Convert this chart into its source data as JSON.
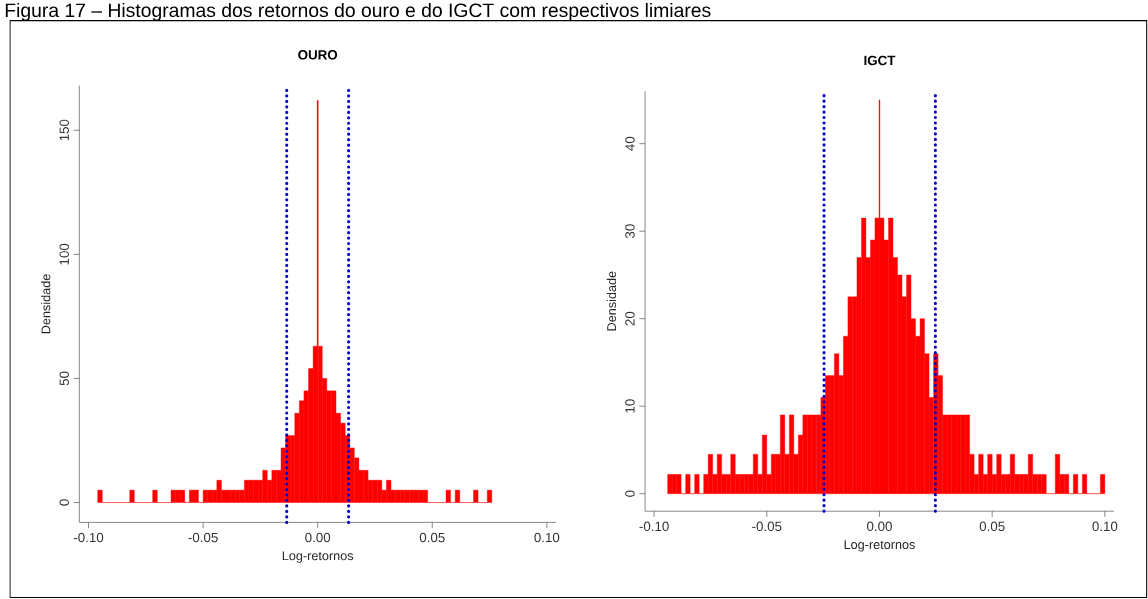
{
  "chart_data": [
    {
      "type": "histogram",
      "title": "OURO",
      "xlabel": "Log-retornos",
      "ylabel": "Densidade",
      "color": "#ff0000",
      "annotations": [
        "Figura 17 – Histogramas dos retornos do ouro e do IGCT com respectivos limiares"
      ],
      "xlim": [
        -0.104,
        0.104
      ],
      "ylim": [
        -8,
        168
      ],
      "xticks": [
        {
          "value": -0.1,
          "label": "-0.10"
        },
        {
          "value": -0.05,
          "label": "-0.05"
        },
        {
          "value": 0,
          "label": "0.00"
        },
        {
          "value": 0.05,
          "label": "0.05"
        },
        {
          "value": 0.1,
          "label": "0.10"
        }
      ],
      "yticks": [
        0,
        50,
        100,
        150
      ],
      "ref_lines": [
        {
          "axis": "x",
          "value": -0.0135,
          "color": "#0000cd",
          "line_style": "dotted"
        },
        {
          "axis": "x",
          "value": 0.0135,
          "color": "#0000cd",
          "line_style": "dotted"
        }
      ],
      "bins": [
        -0.096,
        -0.094,
        -0.092,
        -0.09,
        -0.088,
        -0.086,
        -0.084,
        -0.082,
        -0.08,
        -0.078,
        -0.076,
        -0.074,
        -0.072,
        -0.07,
        -0.068,
        -0.066,
        -0.064,
        -0.062,
        -0.06,
        -0.058,
        -0.056,
        -0.054,
        -0.052,
        -0.05,
        -0.048,
        -0.046,
        -0.044,
        -0.042,
        -0.04,
        -0.038,
        -0.036,
        -0.034,
        -0.032,
        -0.03,
        -0.028,
        -0.026,
        -0.024,
        -0.022,
        -0.02,
        -0.018,
        -0.016,
        -0.014,
        -0.012,
        -0.01,
        -0.008,
        -0.006,
        -0.004,
        -0.002,
        -0.00025,
        0.00025,
        0.002,
        0.004,
        0.006,
        0.008,
        0.01,
        0.012,
        0.014,
        0.016,
        0.018,
        0.02,
        0.022,
        0.024,
        0.026,
        0.028,
        0.03,
        0.032,
        0.034,
        0.036,
        0.038,
        0.04,
        0.042,
        0.044,
        0.046,
        0.048,
        0.05,
        0.052,
        0.054,
        0.056,
        0.058,
        0.06,
        0.062,
        0.064,
        0.066,
        0.068,
        0.07,
        0.072,
        0.074,
        0.076
      ],
      "values": [
        5,
        0,
        0,
        0,
        0,
        0,
        0,
        5,
        0,
        0,
        0,
        0,
        5,
        0,
        0,
        0,
        5,
        5,
        5,
        0,
        5,
        5,
        0,
        5,
        5,
        5,
        9,
        5,
        5,
        5,
        5,
        5,
        9,
        9,
        9,
        9,
        13,
        9,
        13,
        13,
        22,
        27,
        27,
        36,
        41,
        45,
        54,
        63,
        162,
        63,
        50,
        45,
        45,
        36,
        32,
        27,
        22,
        18,
        13,
        13,
        9,
        9,
        9,
        5,
        9,
        5,
        5,
        5,
        5,
        5,
        5,
        5,
        5,
        0,
        0,
        0,
        0,
        5,
        0,
        5,
        0,
        0,
        0,
        5,
        0,
        0,
        5
      ]
    },
    {
      "type": "histogram",
      "title": "IGCT",
      "xlabel": "Log-retornos",
      "ylabel": "Densidade",
      "color": "#ff0000",
      "xlim": [
        -0.104,
        0.104
      ],
      "ylim": [
        -2,
        46
      ],
      "xticks": [
        {
          "value": -0.1,
          "label": "-0.10"
        },
        {
          "value": -0.05,
          "label": "-0.05"
        },
        {
          "value": 0,
          "label": "0.00"
        },
        {
          "value": 0.05,
          "label": "0.05"
        },
        {
          "value": 0.1,
          "label": "0.10"
        }
      ],
      "yticks": [
        0,
        10,
        20,
        30,
        40
      ],
      "ref_lines": [
        {
          "axis": "x",
          "value": -0.0246,
          "color": "#0000cd",
          "line_style": "dotted"
        },
        {
          "axis": "x",
          "value": 0.0248,
          "color": "#0000cd",
          "line_style": "dotted"
        }
      ],
      "bins": [
        -0.094,
        -0.092,
        -0.09,
        -0.088,
        -0.086,
        -0.084,
        -0.082,
        -0.08,
        -0.078,
        -0.076,
        -0.074,
        -0.072,
        -0.07,
        -0.068,
        -0.066,
        -0.064,
        -0.062,
        -0.06,
        -0.058,
        -0.056,
        -0.054,
        -0.052,
        -0.05,
        -0.048,
        -0.046,
        -0.044,
        -0.042,
        -0.04,
        -0.038,
        -0.036,
        -0.034,
        -0.032,
        -0.03,
        -0.028,
        -0.026,
        -0.024,
        -0.022,
        -0.02,
        -0.018,
        -0.016,
        -0.014,
        -0.012,
        -0.01,
        -0.008,
        -0.006,
        -0.004,
        -0.002,
        -0.0002,
        0.0002,
        0.002,
        0.004,
        0.006,
        0.008,
        0.01,
        0.012,
        0.014,
        0.016,
        0.018,
        0.02,
        0.022,
        0.024,
        0.026,
        0.028,
        0.03,
        0.032,
        0.034,
        0.036,
        0.038,
        0.04,
        0.042,
        0.044,
        0.046,
        0.048,
        0.05,
        0.052,
        0.054,
        0.056,
        0.058,
        0.06,
        0.062,
        0.064,
        0.066,
        0.068,
        0.07,
        0.072,
        0.074,
        0.076,
        0.078,
        0.08,
        0.082,
        0.084,
        0.086,
        0.088,
        0.09,
        0.092,
        0.094,
        0.096,
        0.098,
        0.1
      ],
      "values": [
        2.2,
        2.2,
        2.2,
        0,
        2.2,
        0,
        2.2,
        0,
        2.2,
        4.5,
        2.2,
        4.5,
        2.2,
        2.2,
        4.5,
        2.2,
        2.2,
        2.2,
        2.2,
        4.5,
        2.2,
        6.7,
        2.2,
        4.5,
        4.5,
        9,
        4.5,
        9,
        4.5,
        6.7,
        9,
        9,
        9,
        9,
        11,
        13.5,
        13.5,
        16,
        13.5,
        18,
        22.5,
        22.5,
        27,
        31.5,
        27,
        29,
        31.5,
        45,
        31.5,
        29,
        31.5,
        27,
        25,
        22.5,
        25,
        20,
        18,
        20,
        16,
        11,
        16,
        13.5,
        9,
        9,
        9,
        9,
        9,
        9,
        4.5,
        2.2,
        4.5,
        2.2,
        4.5,
        2.2,
        4.5,
        2.2,
        2.2,
        4.5,
        2.2,
        2.2,
        2.2,
        4.5,
        2.2,
        2.2,
        2.2,
        0,
        0,
        4.5,
        2.2,
        2.2,
        0,
        2.2,
        0,
        2.2,
        0,
        0,
        0,
        2.2
      ]
    }
  ]
}
